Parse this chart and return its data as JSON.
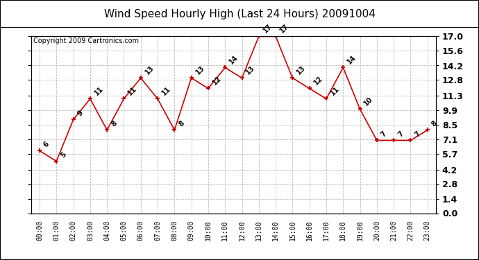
{
  "title": "Wind Speed Hourly High (Last 24 Hours) 20091004",
  "copyright": "Copyright 2009 Cartronics.com",
  "hours": [
    "00:00",
    "01:00",
    "02:00",
    "03:00",
    "04:00",
    "05:00",
    "06:00",
    "07:00",
    "08:00",
    "09:00",
    "10:00",
    "11:00",
    "12:00",
    "13:00",
    "14:00",
    "15:00",
    "16:00",
    "17:00",
    "18:00",
    "19:00",
    "20:00",
    "21:00",
    "22:00",
    "23:00"
  ],
  "values": [
    6,
    5,
    9,
    11,
    8,
    11,
    13,
    11,
    8,
    13,
    12,
    14,
    13,
    17,
    17,
    13,
    12,
    11,
    14,
    10,
    7,
    7,
    7,
    8
  ],
  "line_color": "#cc0000",
  "marker_color": "#cc0000",
  "bg_color": "#ffffff",
  "grid_color": "#bbbbbb",
  "ylim": [
    0.0,
    17.0
  ],
  "yticks": [
    0.0,
    1.4,
    2.8,
    4.2,
    5.7,
    7.1,
    8.5,
    9.9,
    11.3,
    12.8,
    14.2,
    15.6,
    17.0
  ],
  "title_fontsize": 11,
  "label_fontsize": 7,
  "copyright_fontsize": 7,
  "tick_fontsize": 7,
  "yaxis_fontsize": 9
}
